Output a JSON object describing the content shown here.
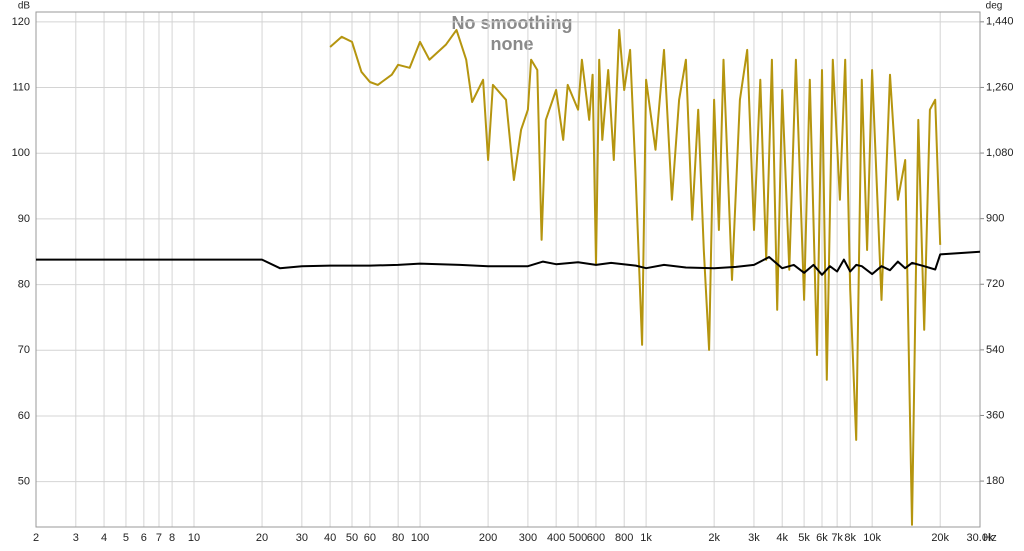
{
  "chart_data": {
    "type": "line",
    "title": "No smoothing",
    "subtitle": "none",
    "y_label": "dB",
    "y2_label": "deg",
    "x_label": "Hz",
    "log_x": true,
    "grid": true,
    "xlim": [
      2,
      30000
    ],
    "ylim": [
      43.1,
      121.5
    ],
    "y2lim": [
      54,
      1467
    ],
    "xticks": [
      2,
      3,
      4,
      5,
      6,
      7,
      8,
      10,
      20,
      30,
      40,
      50,
      60,
      80,
      100,
      200,
      300,
      400,
      500,
      600,
      800,
      {
        "value": 1000,
        "label": "1k"
      },
      {
        "value": 2000,
        "label": "2k"
      },
      {
        "value": 3000,
        "label": "3k"
      },
      {
        "value": 4000,
        "label": "4k"
      },
      {
        "value": 5000,
        "label": "5k"
      },
      {
        "value": 6000,
        "label": "6k"
      },
      {
        "value": 7000,
        "label": "7k"
      },
      {
        "value": 8000,
        "label": "8k"
      },
      {
        "value": 10000,
        "label": "10k"
      },
      {
        "value": 20000,
        "label": "20k"
      },
      {
        "value": 30000,
        "label": "30.0k"
      }
    ],
    "yticks": [
      50,
      60,
      70,
      80,
      90,
      100,
      110,
      120
    ],
    "y2ticks": [
      180,
      360,
      540,
      720,
      900,
      {
        "value": 1080,
        "label": "1,080"
      },
      {
        "value": 1260,
        "label": "1,260"
      },
      {
        "value": 1440,
        "label": "1,440"
      }
    ],
    "series": [
      {
        "color": "#b5950f",
        "axis": "y2",
        "x": [
          40,
          45,
          50,
          55,
          60,
          65,
          75,
          80,
          90,
          100,
          110,
          130,
          145,
          160,
          170,
          190,
          200,
          210,
          240,
          260,
          280,
          300,
          310,
          330,
          345,
          360,
          400,
          430,
          450,
          500,
          520,
          560,
          580,
          600,
          620,
          640,
          680,
          720,
          760,
          800,
          850,
          900,
          960,
          1000,
          1100,
          1200,
          1300,
          1400,
          1500,
          1600,
          1700,
          1800,
          1900,
          2000,
          2100,
          2200,
          2400,
          2600,
          2800,
          3000,
          3200,
          3400,
          3600,
          3800,
          4000,
          4300,
          4600,
          5000,
          5300,
          5700,
          6000,
          6300,
          6700,
          7200,
          7600,
          8000,
          8500,
          9000,
          9500,
          10000,
          11000,
          12000,
          13000,
          14000,
          15000,
          16000,
          17000,
          18000,
          19000,
          20000
        ],
        "values": [
          1371,
          1399,
          1385,
          1303,
          1275,
          1267,
          1295,
          1322,
          1314,
          1385,
          1336,
          1377,
          1418,
          1336,
          1220,
          1281,
          1061,
          1267,
          1226,
          1006,
          1144,
          1199,
          1336,
          1308,
          842,
          1171,
          1253,
          1116,
          1267,
          1199,
          1336,
          1171,
          1295,
          773,
          1336,
          1116,
          1308,
          1061,
          1418,
          1253,
          1363,
          1006,
          554,
          1281,
          1089,
          1363,
          952,
          1226,
          1336,
          897,
          1199,
          814,
          540,
          1226,
          869,
          1336,
          732,
          1226,
          1363,
          869,
          1281,
          787,
          1336,
          650,
          1253,
          760,
          1336,
          677,
          1281,
          526,
          1308,
          458,
          1336,
          952,
          1336,
          705,
          293,
          1281,
          814,
          1308,
          677,
          1295,
          952,
          1061,
          60,
          1171,
          595,
          1199,
          1226,
          828
        ]
      },
      {
        "color": "#000000",
        "x": [
          2,
          20,
          24,
          30,
          40,
          60,
          80,
          100,
          150,
          200,
          300,
          350,
          400,
          500,
          600,
          700,
          900,
          1000,
          1200,
          1500,
          2000,
          2500,
          3000,
          3500,
          4000,
          4500,
          5000,
          5500,
          6000,
          6500,
          7000,
          7500,
          8000,
          8500,
          9000,
          10000,
          11000,
          12000,
          13000,
          14000,
          15000,
          17000,
          19000,
          20000,
          30000
        ],
        "values": [
          83.8,
          83.8,
          82.5,
          82.8,
          82.9,
          82.9,
          83.0,
          83.2,
          83.0,
          82.8,
          82.8,
          83.5,
          83.1,
          83.4,
          83.0,
          83.3,
          82.9,
          82.5,
          83.0,
          82.6,
          82.5,
          82.7,
          83.0,
          84.2,
          82.5,
          83.0,
          81.8,
          83.0,
          81.5,
          82.8,
          82.0,
          83.8,
          82.0,
          83.0,
          82.8,
          81.6,
          82.8,
          82.2,
          83.5,
          82.5,
          83.3,
          82.8,
          82.3,
          84.6,
          85.0
        ]
      }
    ]
  }
}
